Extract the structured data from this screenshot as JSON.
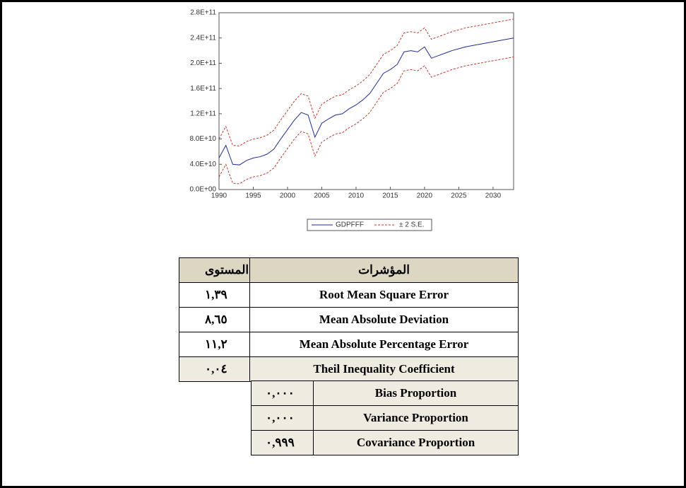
{
  "chart_data": {
    "type": "line",
    "x": [
      1990,
      1991,
      1992,
      1993,
      1994,
      1995,
      1996,
      1997,
      1998,
      1999,
      2000,
      2001,
      2002,
      2003,
      2004,
      2005,
      2006,
      2007,
      2008,
      2009,
      2010,
      2011,
      2012,
      2013,
      2014,
      2015,
      2016,
      2017,
      2018,
      2019,
      2020,
      2021,
      2022,
      2023,
      2024,
      2025,
      2026,
      2027,
      2028,
      2029,
      2030,
      2031,
      2032,
      2033
    ],
    "series": [
      {
        "name": "GDPFFF",
        "color": "#1f2e8c",
        "values": [
          50000000000.0,
          70000000000.0,
          40000000000.0,
          39000000000.0,
          46000000000.0,
          50000000000.0,
          52000000000.0,
          56000000000.0,
          64000000000.0,
          80000000000.0,
          95000000000.0,
          110000000000.0,
          122000000000.0,
          118000000000.0,
          83000000000.0,
          105000000000.0,
          112000000000.0,
          118000000000.0,
          120000000000.0,
          128000000000.0,
          134000000000.0,
          142000000000.0,
          152000000000.0,
          168000000000.0,
          184000000000.0,
          190000000000.0,
          198000000000.0,
          218000000000.0,
          220000000000.0,
          218000000000.0,
          226000000000.0,
          208000000000.0,
          212000000000.0,
          216000000000.0,
          220000000000.0,
          223000000000.0,
          226000000000.0,
          228000000000.0,
          230000000000.0,
          232000000000.0,
          234000000000.0,
          236000000000.0,
          238000000000.0,
          240000000000.0
        ]
      },
      {
        "name": "± 2 S.E.",
        "color": "#c0392b",
        "values": [
          80000000000.0,
          100000000000.0,
          70000000000.0,
          69000000000.0,
          76000000000.0,
          80000000000.0,
          82000000000.0,
          86000000000.0,
          94000000000.0,
          110000000000.0,
          125000000000.0,
          140000000000.0,
          152000000000.0,
          148000000000.0,
          113000000000.0,
          135000000000.0,
          142000000000.0,
          148000000000.0,
          150000000000.0,
          158000000000.0,
          164000000000.0,
          172000000000.0,
          182000000000.0,
          198000000000.0,
          214000000000.0,
          220000000000.0,
          228000000000.0,
          248000000000.0,
          250000000000.0,
          248000000000.0,
          256000000000.0,
          238000000000.0,
          242000000000.0,
          246000000000.0,
          250000000000.0,
          253000000000.0,
          256000000000.0,
          258000000000.0,
          260000000000.0,
          262000000000.0,
          264000000000.0,
          266000000000.0,
          268000000000.0,
          270000000000.0
        ],
        "lower": [
          20000000000.0,
          40000000000.0,
          10000000000.0,
          9000000000.0,
          16000000000.0,
          20000000000.0,
          22000000000.0,
          26000000000.0,
          34000000000.0,
          50000000000.0,
          65000000000.0,
          80000000000.0,
          92000000000.0,
          88000000000.0,
          53000000000.0,
          75000000000.0,
          82000000000.0,
          88000000000.0,
          90000000000.0,
          98000000000.0,
          104000000000.0,
          112000000000.0,
          122000000000.0,
          138000000000.0,
          154000000000.0,
          160000000000.0,
          168000000000.0,
          188000000000.0,
          190000000000.0,
          188000000000.0,
          196000000000.0,
          178000000000.0,
          182000000000.0,
          186000000000.0,
          190000000000.0,
          193000000000.0,
          196000000000.0,
          198000000000.0,
          200000000000.0,
          202000000000.0,
          204000000000.0,
          206000000000.0,
          208000000000.0,
          210000000000.0
        ]
      }
    ],
    "xlim": [
      1990,
      2033
    ],
    "xticks": [
      1990,
      1995,
      2000,
      2005,
      2010,
      2015,
      2020,
      2025,
      2030
    ],
    "ylim": [
      0,
      280000000000.0
    ],
    "yticks": [
      {
        "value": 0,
        "label": "0.0E+00"
      },
      {
        "value": 40000000000.0,
        "label": "4.0E+10"
      },
      {
        "value": 80000000000.0,
        "label": "8.0E+10"
      },
      {
        "value": 120000000000.0,
        "label": "1.2E+11"
      },
      {
        "value": 160000000000.0,
        "label": "1.6E+11"
      },
      {
        "value": 200000000000.0,
        "label": "2.0E+11"
      },
      {
        "value": 240000000000.0,
        "label": "2.4E+11"
      },
      {
        "value": 280000000000.0,
        "label": "2.8E+11"
      }
    ]
  },
  "table": {
    "header": [
      "المستوى",
      "المؤشرات"
    ],
    "rows": [
      [
        "١,٣٩",
        "Root Mean Square Error"
      ],
      [
        "٨,٦٥",
        "Mean Absolute Deviation"
      ],
      [
        "١١,٢",
        "Mean Absolute Percentage Error"
      ],
      [
        "٠,٠٤",
        "Theil Inequality Coefficient"
      ]
    ],
    "subrows": [
      [
        "٠,٠٠٠",
        "Bias Proportion"
      ],
      [
        "٠,٠٠٠",
        "Variance Proportion"
      ],
      [
        "٠,٩٩٩",
        "Covariance Proportion"
      ]
    ]
  }
}
